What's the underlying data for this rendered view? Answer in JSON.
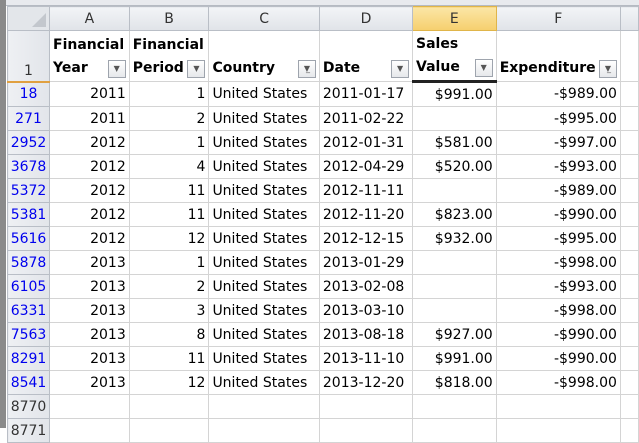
{
  "columns": [
    "A",
    "B",
    "C",
    "D",
    "E",
    "F"
  ],
  "selected_column": "E",
  "header_row_number": "1",
  "headers": [
    {
      "line1": "Financial",
      "line2": "Year",
      "filter": "dropdown-icon"
    },
    {
      "line1": "Financial",
      "line2": "Period",
      "filter": "dropdown-icon"
    },
    {
      "line1": "",
      "line2": "Country",
      "filter": "filter-active-icon"
    },
    {
      "line1": "",
      "line2": "Date",
      "filter": "dropdown-icon"
    },
    {
      "line1": "Sales",
      "line2": "Value",
      "filter": "dropdown-icon"
    },
    {
      "line1": "",
      "line2": "Expenditure",
      "filter": "filter-active-icon"
    }
  ],
  "rows": [
    {
      "n": "18",
      "year": "2011",
      "period": "1",
      "country": "United States",
      "date": "2011-01-17",
      "sales": "$991.00",
      "exp": "-$989.00"
    },
    {
      "n": "271",
      "year": "2011",
      "period": "2",
      "country": "United States",
      "date": "2011-02-22",
      "sales": "",
      "exp": "-$995.00"
    },
    {
      "n": "2952",
      "year": "2012",
      "period": "1",
      "country": "United States",
      "date": "2012-01-31",
      "sales": "$581.00",
      "exp": "-$997.00"
    },
    {
      "n": "3678",
      "year": "2012",
      "period": "4",
      "country": "United States",
      "date": "2012-04-29",
      "sales": "$520.00",
      "exp": "-$993.00"
    },
    {
      "n": "5372",
      "year": "2012",
      "period": "11",
      "country": "United States",
      "date": "2012-11-11",
      "sales": "",
      "exp": "-$989.00"
    },
    {
      "n": "5381",
      "year": "2012",
      "period": "11",
      "country": "United States",
      "date": "2012-11-20",
      "sales": "$823.00",
      "exp": "-$990.00"
    },
    {
      "n": "5616",
      "year": "2012",
      "period": "12",
      "country": "United States",
      "date": "2012-12-15",
      "sales": "$932.00",
      "exp": "-$995.00"
    },
    {
      "n": "5878",
      "year": "2013",
      "period": "1",
      "country": "United States",
      "date": "2013-01-29",
      "sales": "",
      "exp": "-$998.00"
    },
    {
      "n": "6105",
      "year": "2013",
      "period": "2",
      "country": "United States",
      "date": "2013-02-08",
      "sales": "",
      "exp": "-$993.00"
    },
    {
      "n": "6331",
      "year": "2013",
      "period": "3",
      "country": "United States",
      "date": "2013-03-10",
      "sales": "",
      "exp": "-$998.00"
    },
    {
      "n": "7563",
      "year": "2013",
      "period": "8",
      "country": "United States",
      "date": "2013-08-18",
      "sales": "$927.00",
      "exp": "-$990.00"
    },
    {
      "n": "8291",
      "year": "2013",
      "period": "11",
      "country": "United States",
      "date": "2013-11-10",
      "sales": "$991.00",
      "exp": "-$990.00"
    },
    {
      "n": "8541",
      "year": "2013",
      "period": "12",
      "country": "United States",
      "date": "2013-12-20",
      "sales": "$818.00",
      "exp": "-$998.00"
    }
  ],
  "empty_rows": [
    "8770",
    "8771"
  ]
}
